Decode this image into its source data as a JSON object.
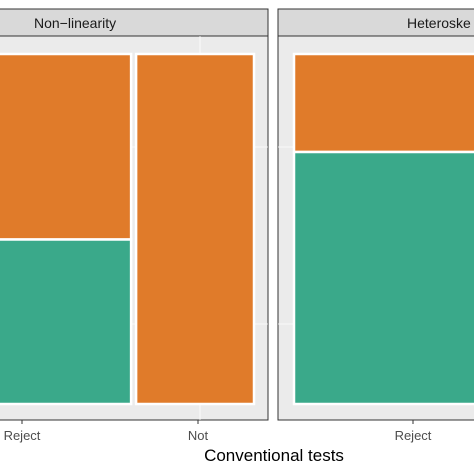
{
  "colors": {
    "panel_bg": "#ebebeb",
    "grid": "#ffffff",
    "strip_bg": "#d9d9d9",
    "strip_border": "#333333",
    "orange": "#e07b2a",
    "teal": "#3aa98a"
  },
  "chart_data": {
    "type": "mosaic",
    "xlabel": "Conventional tests",
    "ylabel": "",
    "grid": true,
    "categories": [
      "Reject",
      "Not"
    ],
    "series": [
      {
        "color": "orange"
      },
      {
        "color": "teal"
      }
    ],
    "panels": [
      {
        "title": "Non−linearity",
        "x_tick_labels": [
          "Reject",
          "Not"
        ],
        "columns": [
          {
            "category": "Reject",
            "width": 0.55,
            "segments": [
              0.53,
              0.47
            ]
          },
          {
            "category": "Not",
            "width": 0.45,
            "segments": [
              1.0,
              0.0
            ]
          }
        ]
      },
      {
        "title": "Heteroske",
        "x_tick_labels": [
          "Reject"
        ],
        "columns": [
          {
            "category": "Reject",
            "width": 1.0,
            "segments": [
              0.28,
              0.72
            ]
          }
        ]
      }
    ]
  }
}
